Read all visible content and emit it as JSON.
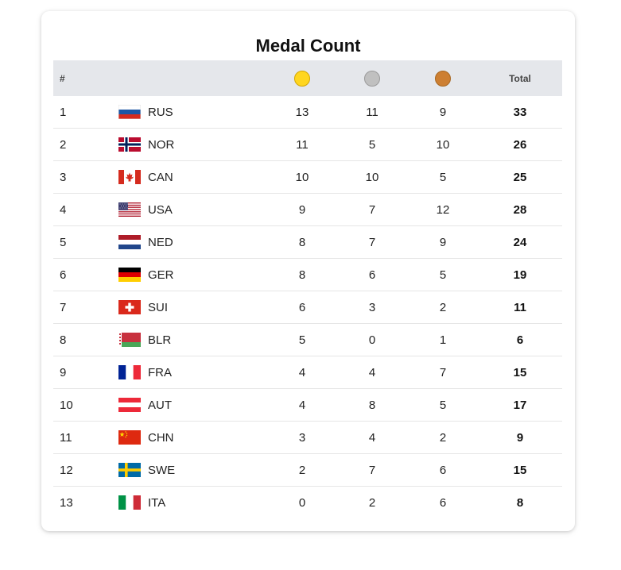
{
  "title": "Medal Count",
  "header": {
    "rank": "#",
    "country": "",
    "gold_icon": "gold-medal-icon",
    "silver_icon": "silver-medal-icon",
    "bronze_icon": "bronze-medal-icon",
    "total": "Total"
  },
  "colors": {
    "gold": "#ffd61f",
    "silver": "#c0c0c0",
    "bronze": "#cd7f32",
    "header_bg": "#e5e7eb"
  },
  "rows": [
    {
      "rank": "1",
      "code": "RUS",
      "flag": "russia-flag-icon",
      "gold": "13",
      "silver": "11",
      "bronze": "9",
      "total": "33"
    },
    {
      "rank": "2",
      "code": "NOR",
      "flag": "norway-flag-icon",
      "gold": "11",
      "silver": "5",
      "bronze": "10",
      "total": "26"
    },
    {
      "rank": "3",
      "code": "CAN",
      "flag": "canada-flag-icon",
      "gold": "10",
      "silver": "10",
      "bronze": "5",
      "total": "25"
    },
    {
      "rank": "4",
      "code": "USA",
      "flag": "usa-flag-icon",
      "gold": "9",
      "silver": "7",
      "bronze": "12",
      "total": "28"
    },
    {
      "rank": "5",
      "code": "NED",
      "flag": "netherlands-flag-icon",
      "gold": "8",
      "silver": "7",
      "bronze": "9",
      "total": "24"
    },
    {
      "rank": "6",
      "code": "GER",
      "flag": "germany-flag-icon",
      "gold": "8",
      "silver": "6",
      "bronze": "5",
      "total": "19"
    },
    {
      "rank": "7",
      "code": "SUI",
      "flag": "switzerland-flag-icon",
      "gold": "6",
      "silver": "3",
      "bronze": "2",
      "total": "11"
    },
    {
      "rank": "8",
      "code": "BLR",
      "flag": "belarus-flag-icon",
      "gold": "5",
      "silver": "0",
      "bronze": "1",
      "total": "6"
    },
    {
      "rank": "9",
      "code": "FRA",
      "flag": "france-flag-icon",
      "gold": "4",
      "silver": "4",
      "bronze": "7",
      "total": "15"
    },
    {
      "rank": "10",
      "code": "AUT",
      "flag": "austria-flag-icon",
      "gold": "4",
      "silver": "8",
      "bronze": "5",
      "total": "17"
    },
    {
      "rank": "11",
      "code": "CHN",
      "flag": "china-flag-icon",
      "gold": "3",
      "silver": "4",
      "bronze": "2",
      "total": "9"
    },
    {
      "rank": "12",
      "code": "SWE",
      "flag": "sweden-flag-icon",
      "gold": "2",
      "silver": "7",
      "bronze": "6",
      "total": "15"
    },
    {
      "rank": "13",
      "code": "ITA",
      "flag": "italy-flag-icon",
      "gold": "0",
      "silver": "2",
      "bronze": "6",
      "total": "8"
    }
  ]
}
